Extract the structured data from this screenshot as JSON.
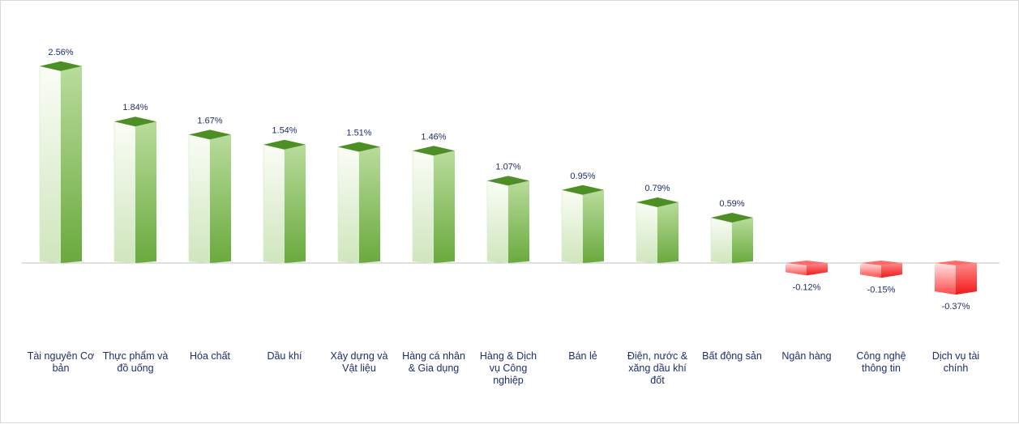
{
  "chart_data": {
    "type": "bar",
    "title": "",
    "xlabel": "",
    "ylabel": "",
    "categories": [
      "Tài nguyên Cơ bản",
      "Thực phẩm và đồ uống",
      "Hóa chất",
      "Dầu khí",
      "Xây dựng và Vật liệu",
      "Hàng cá nhân & Gia dụng",
      "Hàng & Dịch vụ Công nghiệp",
      "Bán lẻ",
      "Điện, nước & xăng dầu khí đốt",
      "Bất động sản",
      "Ngân hàng",
      "Công nghệ thông tin",
      "Dịch vụ tài chính"
    ],
    "values": [
      2.56,
      1.84,
      1.67,
      1.54,
      1.51,
      1.46,
      1.07,
      0.95,
      0.79,
      0.59,
      -0.12,
      -0.15,
      -0.37
    ],
    "data_labels": [
      "2.56%",
      "1.84%",
      "1.67%",
      "1.54%",
      "1.51%",
      "1.46%",
      "1.07%",
      "0.95%",
      "0.79%",
      "0.59%",
      "-0.12%",
      "-0.15%",
      "-0.37%"
    ],
    "ylim": [
      -0.37,
      2.56
    ],
    "grid": false,
    "legend": "none",
    "colors": {
      "positive_light": "#f4f9ee",
      "positive_dark": "#6aaa3e",
      "positive_top": "#4e8f25",
      "negative_light": "#ffe4e4",
      "negative_dark": "#f01818",
      "negative_top": "#ff6b6b",
      "baseline": "#c0c0c0",
      "label_text": "#1f2d6b"
    }
  }
}
